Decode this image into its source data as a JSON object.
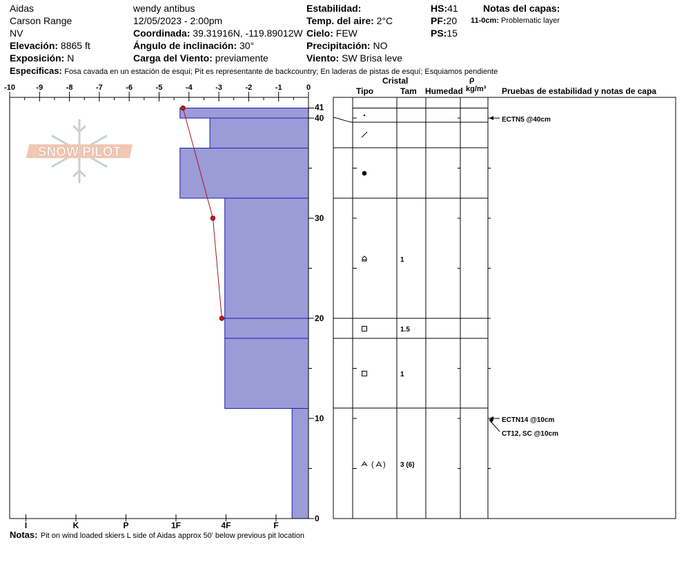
{
  "header": {
    "location": "Aidas",
    "range": "Carson Range",
    "state": "NV",
    "elevation_label": "Elevación:",
    "elevation": "8865 ft",
    "aspect_label": "Exposición:",
    "aspect": "N",
    "observer": "wendy antibus",
    "datetime": "12/05/2023 - 2:00pm",
    "coord_label": "Coordinada:",
    "coord": "39.31916N, -119.89012W",
    "slope_label": "Ángulo de inclinación:",
    "slope": "30°",
    "wind_load_label": "Carga del Viento:",
    "wind_load": "previamente",
    "stability_label": "Estabilidad:",
    "air_temp_label": "Temp. del aire:",
    "air_temp": "2°C",
    "sky_label": "Cielo:",
    "sky": "FEW",
    "precip_label": "Precipitación:",
    "precip": "NO",
    "wind_label": "Viento:",
    "wind": "SW  Brisa leve",
    "hs_label": "HS:",
    "hs": "41",
    "pf_label": "PF:",
    "pf": "20",
    "ps_label": "PS:",
    "ps": "15",
    "layer_notes_label": "Notas del capas:",
    "layer_note_depth": "11-0cm:",
    "layer_note_text": "Problematic layer",
    "specifics_label": "Especificas:",
    "specifics": "Fosa cavada en un estación de esquí; Pit es representante de backcountry; En laderas de pistas de esquí; Esquiamos pendiente",
    "notes_label": "Notas:",
    "notes": "Pit on wind loaded skiers L side of Aidas approx 50' below previous pit location"
  },
  "columns": {
    "crystal": "Cristal",
    "type": "Tipo",
    "size": "Tam",
    "moisture": "Humedad",
    "density_symbol": "ρ",
    "density_unit": "kg/m³",
    "tests": "Pruebas de estabilidad y notas de capa"
  },
  "logo_text": "SNOW PILOT",
  "chart_data": {
    "type": "bar",
    "temp_axis": {
      "ticks": [
        -10,
        -9,
        -8,
        -7,
        -6,
        -5,
        -4,
        -3,
        -2,
        -1,
        0
      ],
      "range": [
        -10,
        0
      ]
    },
    "hardness_axis": {
      "ticks": [
        "I",
        "K",
        "P",
        "1F",
        "4F",
        "F"
      ]
    },
    "depth_axis": {
      "range": [
        0,
        41
      ],
      "ticks": [
        0,
        10,
        20,
        30,
        40,
        41
      ]
    },
    "hardness_series": [
      {
        "top": 41,
        "bottom": 40,
        "hardness": 4.3
      },
      {
        "top": 40,
        "bottom": 37,
        "hardness": 3.3
      },
      {
        "top": 37,
        "bottom": 32,
        "hardness": 4.3
      },
      {
        "top": 32,
        "bottom": 20,
        "hardness": 2.8
      },
      {
        "top": 20,
        "bottom": 18,
        "hardness": 2.8
      },
      {
        "top": 18,
        "bottom": 11,
        "hardness": 2.8
      },
      {
        "top": 11,
        "bottom": 0,
        "hardness": 0.55
      }
    ],
    "temperature_profile": [
      {
        "depth": 41,
        "temp": -4.2
      },
      {
        "depth": 30,
        "temp": -3.2
      },
      {
        "depth": 20,
        "temp": -2.9
      }
    ],
    "layers": [
      {
        "top": 41,
        "bottom": 40,
        "symbol": "precip-particle",
        "size": ""
      },
      {
        "top": 40,
        "bottom": 37,
        "symbol": "decomposing",
        "size": ""
      },
      {
        "top": 37,
        "bottom": 32,
        "symbol": "rounded",
        "size": ""
      },
      {
        "top": 32,
        "bottom": 20,
        "symbol": "depth-hoar-faceted",
        "size": "1"
      },
      {
        "top": 20,
        "bottom": 18,
        "symbol": "faceted",
        "size": "1.5"
      },
      {
        "top": 18,
        "bottom": 11,
        "symbol": "faceted",
        "size": "1"
      },
      {
        "top": 11,
        "bottom": 0,
        "symbol": "depth-hoar",
        "size": "3 (6)"
      }
    ],
    "tests": [
      {
        "depth": 40,
        "label": "ECTN5 @40cm"
      },
      {
        "depth": 10,
        "label": "ECTN14 @10cm"
      },
      {
        "depth": 10,
        "label": "CT12, SC @10cm"
      }
    ]
  }
}
